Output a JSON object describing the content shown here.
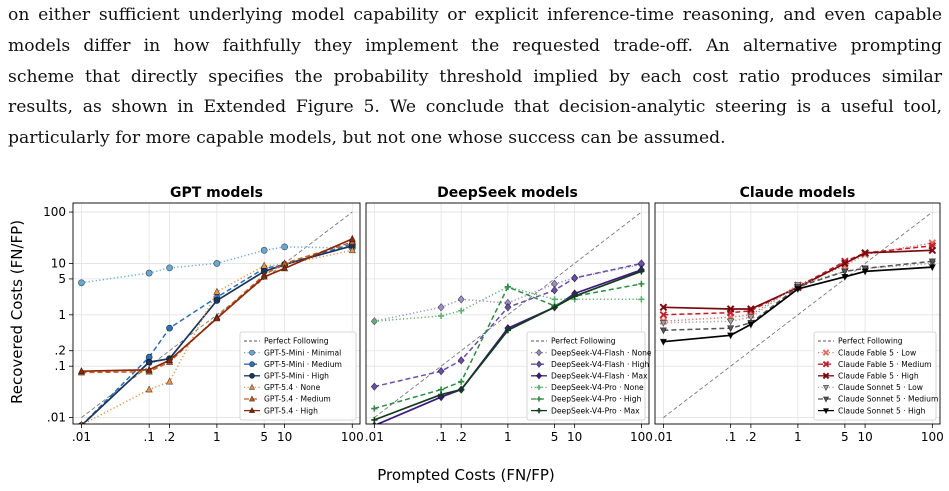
{
  "paragraph": {
    "lines": [
      "on either sufficient underlying model capability or explicit inference-time reasoning, and even capable",
      "models differ in how faithfully they implement the requested trade-off. An alternative prompting",
      "scheme that directly specifies the probability threshold implied by each cost ratio produces similar",
      "results, as shown in Extended Figure 5. We conclude that decision-analytic steering is a useful tool,",
      "particularly for more capable models, but not one whose success can be assumed."
    ]
  },
  "figure": {
    "xlabel": "Prompted Costs (FN/FP)",
    "ylabel": "Recovered Costs (FN/FP)",
    "scale": "log-log",
    "grid": true
  },
  "chart_data": [
    {
      "type": "line",
      "title": "GPT models",
      "xscale": "log",
      "yscale": "log",
      "xlim": [
        0.0075,
        130
      ],
      "ylim": [
        0.0075,
        150
      ],
      "x": [
        0.01,
        0.1,
        0.2,
        1,
        5,
        10,
        100
      ],
      "x_tick_labels": [
        ".01",
        ".1",
        ".2",
        "1",
        "5",
        "10",
        "100"
      ],
      "y_ticks": [
        0.01,
        0.1,
        0.2,
        1,
        5,
        10,
        100
      ],
      "y_tick_labels": [
        ".01",
        ".1",
        ".2",
        "1",
        "5",
        "10",
        "100"
      ],
      "reference_line": {
        "name": "Perfect Following",
        "color": "#777777"
      },
      "legend_placement": "lower-right",
      "series": [
        {
          "name": "GPT-5-Mini · Minimal",
          "color": "#6aa8d4",
          "marker": "circle",
          "style": "dotted",
          "values": [
            4.2,
            6.5,
            8.2,
            10,
            18,
            21,
            20
          ]
        },
        {
          "name": "GPT-5-Mini · Medium",
          "color": "#2c6fb5",
          "marker": "circle",
          "style": "dashed",
          "values": [
            0.007,
            0.15,
            0.55,
            2.2,
            8,
            9.5,
            24
          ]
        },
        {
          "name": "GPT-5-Mini · High",
          "color": "#17365f",
          "marker": "circle",
          "style": "solid",
          "values": [
            0.007,
            0.12,
            0.14,
            1.9,
            7,
            9.5,
            22
          ]
        },
        {
          "name": "GPT-5.4 · None",
          "color": "#e8924a",
          "marker": "triangle",
          "style": "dotted",
          "values": [
            0.0072,
            0.035,
            0.05,
            2.8,
            9,
            9.5,
            18
          ]
        },
        {
          "name": "GPT-5.4 · Medium",
          "color": "#c75f20",
          "marker": "triangle",
          "style": "dashed",
          "values": [
            0.075,
            0.078,
            0.12,
            0.9,
            6,
            10,
            26
          ]
        },
        {
          "name": "GPT-5.4 · High",
          "color": "#8a2a0a",
          "marker": "triangle",
          "style": "solid",
          "values": [
            0.08,
            0.085,
            0.13,
            0.85,
            5.5,
            8,
            30
          ]
        }
      ]
    },
    {
      "type": "line",
      "title": "DeepSeek models",
      "xscale": "log",
      "yscale": "log",
      "xlim": [
        0.0075,
        130
      ],
      "ylim": [
        0.0075,
        150
      ],
      "x": [
        0.01,
        0.1,
        0.2,
        1,
        5,
        10,
        100
      ],
      "x_tick_labels": [
        ".01",
        ".1",
        ".2",
        "1",
        "5",
        "10",
        "100"
      ],
      "reference_line": {
        "name": "Perfect Following",
        "color": "#777777"
      },
      "legend_placement": "lower-right",
      "series": [
        {
          "name": "DeepSeek-V4-Flash · None",
          "color": "#9c8ec9",
          "marker": "diamond",
          "style": "dotted",
          "values": [
            0.75,
            1.4,
            2,
            1.7,
            4,
            5.2,
            9.5
          ]
        },
        {
          "name": "DeepSeek-V4-Flash · High",
          "color": "#6a4fa8",
          "marker": "diamond",
          "style": "dashed",
          "values": [
            0.04,
            0.08,
            0.13,
            1.4,
            3,
            5.2,
            10
          ]
        },
        {
          "name": "DeepSeek-V4-Flash · Max",
          "color": "#3d1a80",
          "marker": "diamond",
          "style": "solid",
          "values": [
            0.007,
            0.025,
            0.035,
            0.55,
            1.4,
            2.6,
            7.5
          ]
        },
        {
          "name": "DeepSeek-V4-Pro · None",
          "color": "#5fb070",
          "marker": "plus",
          "style": "dotted",
          "values": [
            0.75,
            0.95,
            1.2,
            3.5,
            2,
            2,
            2
          ]
        },
        {
          "name": "DeepSeek-V4-Pro · High",
          "color": "#2e8a44",
          "marker": "plus",
          "style": "dashed",
          "values": [
            0.015,
            0.035,
            0.05,
            3.5,
            1.5,
            2.3,
            4
          ]
        },
        {
          "name": "DeepSeek-V4-Pro · Max",
          "color": "#0f3d1c",
          "marker": "plus",
          "style": "solid",
          "values": [
            0.009,
            0.028,
            0.035,
            0.5,
            1.4,
            2.3,
            7
          ]
        }
      ]
    },
    {
      "type": "line",
      "title": "Claude models",
      "xscale": "log",
      "yscale": "log",
      "xlim": [
        0.0075,
        130
      ],
      "ylim": [
        0.0075,
        150
      ],
      "x": [
        0.01,
        0.1,
        0.2,
        1,
        5,
        10,
        100
      ],
      "x_tick_labels": [
        ".01",
        ".1",
        ".2",
        "1",
        "5",
        "10",
        "100"
      ],
      "reference_line": {
        "name": "Perfect Following",
        "color": "#777777"
      },
      "legend_placement": "lower-right",
      "series": [
        {
          "name": "Claude Fable 5 · Low",
          "color": "#e07060",
          "marker": "x",
          "style": "dotted",
          "values": [
            0.75,
            0.9,
            1,
            3.8,
            9,
            15,
            25
          ]
        },
        {
          "name": "Claude Fable 5 · Medium",
          "color": "#c02030",
          "marker": "x",
          "style": "dashed",
          "values": [
            1,
            1.1,
            1.2,
            3.5,
            11,
            16,
            22
          ]
        },
        {
          "name": "Claude Fable 5 · High",
          "color": "#7a0a10",
          "marker": "x",
          "style": "solid",
          "values": [
            1.4,
            1.3,
            1.3,
            3.4,
            10,
            16,
            18
          ]
        },
        {
          "name": "Claude Sonnet 5 · Low",
          "color": "#a0a0a0",
          "marker": "triangle-down",
          "style": "dotted",
          "values": [
            0.7,
            0.75,
            0.9,
            3.8,
            7,
            8,
            10
          ]
        },
        {
          "name": "Claude Sonnet 5 · Medium",
          "color": "#555555",
          "marker": "triangle-down",
          "style": "dashed",
          "values": [
            0.5,
            0.55,
            0.7,
            3.5,
            7,
            8,
            11
          ]
        },
        {
          "name": "Claude Sonnet 5 · High",
          "color": "#000000",
          "marker": "triangle-down",
          "style": "solid",
          "values": [
            0.3,
            0.4,
            0.65,
            3.2,
            5.5,
            7,
            8.5
          ]
        }
      ]
    }
  ]
}
